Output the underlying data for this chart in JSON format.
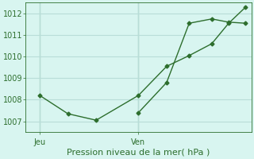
{
  "xlabel": "Pression niveau de la mer( hPa )",
  "bg_color": "#d8f5f0",
  "grid_color": "#b8ddd8",
  "line_color": "#2d6e2d",
  "ylim": [
    1006.5,
    1012.5
  ],
  "yticks": [
    1007,
    1008,
    1009,
    1010,
    1011,
    1012
  ],
  "xlim": [
    0,
    8
  ],
  "xtick_positions": [
    0.5,
    4.0
  ],
  "xtick_labels": [
    "Jeu",
    "Ven"
  ],
  "vline_x": [
    0.5,
    4.0
  ],
  "series1_x": [
    0.5,
    1.5,
    2.5,
    4.0,
    5.0,
    5.8,
    6.6,
    7.2,
    7.8
  ],
  "series1_y": [
    1008.2,
    1007.35,
    1007.05,
    1008.2,
    1009.55,
    1010.05,
    1010.6,
    1011.55,
    1012.3
  ],
  "series2_x": [
    4.0,
    5.0,
    5.8,
    6.6,
    7.2,
    7.8
  ],
  "series2_y": [
    1007.4,
    1008.8,
    1011.55,
    1011.75,
    1011.6,
    1011.55
  ],
  "xlabel_fontsize": 8,
  "tick_fontsize": 7
}
